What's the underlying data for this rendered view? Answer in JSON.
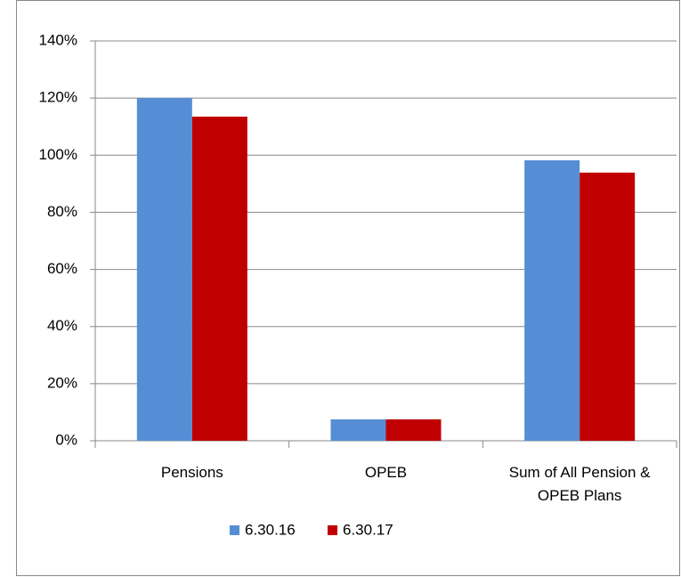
{
  "chart_data": {
    "type": "bar",
    "categories": [
      "Pensions",
      "OPEB",
      "Sum of All Pension & OPEB Plans"
    ],
    "series": [
      {
        "name": "6.30.16",
        "color": "#558ed5",
        "values": [
          120,
          7.5,
          98.2
        ]
      },
      {
        "name": "6.30.17",
        "color": "#c00000",
        "values": [
          113.5,
          7.5,
          93.9
        ]
      }
    ],
    "ylim": [
      0,
      140
    ],
    "yticks": [
      {
        "value": 0,
        "label": "0%"
      },
      {
        "value": 20,
        "label": "20%"
      },
      {
        "value": 40,
        "label": "40%"
      },
      {
        "value": 60,
        "label": "60%"
      },
      {
        "value": 80,
        "label": "80%"
      },
      {
        "value": 100,
        "label": "100%"
      },
      {
        "value": 120,
        "label": "120%"
      },
      {
        "value": 140,
        "label": "140%"
      }
    ],
    "grid": true,
    "legend": "bottom"
  }
}
